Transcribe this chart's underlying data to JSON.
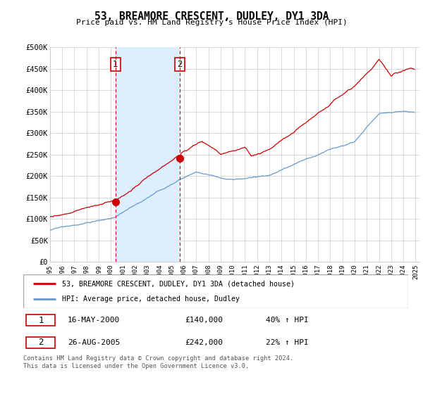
{
  "title": "53, BREAMORE CRESCENT, DUDLEY, DY1 3DA",
  "subtitle": "Price paid vs. HM Land Registry's House Price Index (HPI)",
  "ylim": [
    0,
    500000
  ],
  "yticks": [
    0,
    50000,
    100000,
    150000,
    200000,
    250000,
    300000,
    350000,
    400000,
    450000,
    500000
  ],
  "ytick_labels": [
    "£0",
    "£50K",
    "£100K",
    "£150K",
    "£200K",
    "£250K",
    "£300K",
    "£350K",
    "£400K",
    "£450K",
    "£500K"
  ],
  "sale1_date": 2000.37,
  "sale1_price": 140000,
  "sale1_label": "16-MAY-2000",
  "sale1_amount": "£140,000",
  "sale1_hpi": "40% ↑ HPI",
  "sale2_date": 2005.65,
  "sale2_price": 242000,
  "sale2_label": "26-AUG-2005",
  "sale2_amount": "£242,000",
  "sale2_hpi": "22% ↑ HPI",
  "legend_line1": "53, BREAMORE CRESCENT, DUDLEY, DY1 3DA (detached house)",
  "legend_line2": "HPI: Average price, detached house, Dudley",
  "footer": "Contains HM Land Registry data © Crown copyright and database right 2024.\nThis data is licensed under the Open Government Licence v3.0.",
  "red_color": "#cc0000",
  "blue_color": "#6699cc",
  "shade_color": "#ddeeff",
  "grid_color": "#cccccc"
}
